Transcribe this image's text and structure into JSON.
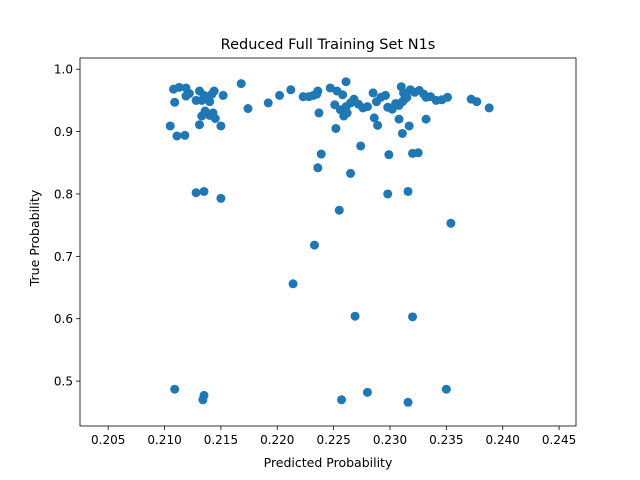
{
  "chart_data": {
    "type": "scatter",
    "title": "Reduced Full Training Set N1s",
    "xlabel": "Predicted Probability",
    "ylabel": "True Probability",
    "xlim": [
      0.2025,
      0.2465
    ],
    "ylim": [
      0.428,
      1.018
    ],
    "xticks": [
      0.205,
      0.21,
      0.215,
      0.22,
      0.225,
      0.23,
      0.235,
      0.24,
      0.245
    ],
    "xtick_labels": [
      "0.205",
      "0.210",
      "0.215",
      "0.220",
      "0.225",
      "0.230",
      "0.235",
      "0.240",
      "0.245"
    ],
    "yticks": [
      0.5,
      0.6,
      0.7,
      0.8,
      0.9,
      1.0
    ],
    "ytick_labels": [
      "0.5",
      "0.6",
      "0.7",
      "0.8",
      "0.9",
      "1.0"
    ],
    "grid": false,
    "marker_color": "#1f77b4",
    "series": [
      {
        "points": [
          [
            0.2108,
            0.968
          ],
          [
            0.2113,
            0.971
          ],
          [
            0.2119,
            0.97
          ],
          [
            0.2109,
            0.947
          ],
          [
            0.2105,
            0.909
          ],
          [
            0.2111,
            0.893
          ],
          [
            0.2118,
            0.894
          ],
          [
            0.2119,
            0.957
          ],
          [
            0.2122,
            0.961
          ],
          [
            0.2128,
            0.95
          ],
          [
            0.2131,
            0.965
          ],
          [
            0.2133,
            0.95
          ],
          [
            0.2135,
            0.958
          ],
          [
            0.2137,
            0.956
          ],
          [
            0.214,
            0.948
          ],
          [
            0.2142,
            0.96
          ],
          [
            0.2144,
            0.965
          ],
          [
            0.2133,
            0.925
          ],
          [
            0.2136,
            0.933
          ],
          [
            0.214,
            0.926
          ],
          [
            0.2143,
            0.93
          ],
          [
            0.2145,
            0.921
          ],
          [
            0.2131,
            0.911
          ],
          [
            0.215,
            0.909
          ],
          [
            0.2152,
            0.958
          ],
          [
            0.2128,
            0.802
          ],
          [
            0.2135,
            0.804
          ],
          [
            0.215,
            0.793
          ],
          [
            0.2109,
            0.487
          ],
          [
            0.2135,
            0.477
          ],
          [
            0.2134,
            0.47
          ],
          [
            0.2168,
            0.977
          ],
          [
            0.2174,
            0.937
          ],
          [
            0.2192,
            0.946
          ],
          [
            0.2202,
            0.958
          ],
          [
            0.2212,
            0.967
          ],
          [
            0.2223,
            0.956
          ],
          [
            0.2228,
            0.956
          ],
          [
            0.2232,
            0.958
          ],
          [
            0.2235,
            0.96
          ],
          [
            0.2236,
            0.965
          ],
          [
            0.2237,
            0.93
          ],
          [
            0.2247,
            0.97
          ],
          [
            0.2251,
            0.943
          ],
          [
            0.2253,
            0.965
          ],
          [
            0.2256,
            0.935
          ],
          [
            0.2258,
            0.959
          ],
          [
            0.2259,
            0.925
          ],
          [
            0.2261,
            0.98
          ],
          [
            0.2261,
            0.94
          ],
          [
            0.2262,
            0.93
          ],
          [
            0.2265,
            0.946
          ],
          [
            0.2268,
            0.952
          ],
          [
            0.2272,
            0.944
          ],
          [
            0.2276,
            0.938
          ],
          [
            0.228,
            0.94
          ],
          [
            0.2285,
            0.962
          ],
          [
            0.2286,
            0.922
          ],
          [
            0.2288,
            0.948
          ],
          [
            0.2289,
            0.91
          ],
          [
            0.2292,
            0.955
          ],
          [
            0.2296,
            0.958
          ],
          [
            0.2298,
            0.939
          ],
          [
            0.2302,
            0.936
          ],
          [
            0.2305,
            0.945
          ],
          [
            0.2308,
            0.942
          ],
          [
            0.231,
            0.972
          ],
          [
            0.2311,
            0.948
          ],
          [
            0.2312,
            0.962
          ],
          [
            0.2313,
            0.952
          ],
          [
            0.2315,
            0.955
          ],
          [
            0.2318,
            0.967
          ],
          [
            0.2322,
            0.963
          ],
          [
            0.2326,
            0.966
          ],
          [
            0.233,
            0.96
          ],
          [
            0.2332,
            0.955
          ],
          [
            0.2336,
            0.956
          ],
          [
            0.2341,
            0.95
          ],
          [
            0.2346,
            0.951
          ],
          [
            0.2351,
            0.955
          ],
          [
            0.2308,
            0.92
          ],
          [
            0.2311,
            0.897
          ],
          [
            0.2317,
            0.909
          ],
          [
            0.2332,
            0.92
          ],
          [
            0.2372,
            0.952
          ],
          [
            0.2377,
            0.948
          ],
          [
            0.2388,
            0.938
          ],
          [
            0.2252,
            0.905
          ],
          [
            0.2274,
            0.877
          ],
          [
            0.2239,
            0.864
          ],
          [
            0.2299,
            0.863
          ],
          [
            0.232,
            0.865
          ],
          [
            0.2325,
            0.866
          ],
          [
            0.2236,
            0.842
          ],
          [
            0.2265,
            0.833
          ],
          [
            0.2316,
            0.804
          ],
          [
            0.2298,
            0.8
          ],
          [
            0.2255,
            0.774
          ],
          [
            0.2354,
            0.753
          ],
          [
            0.2233,
            0.718
          ],
          [
            0.2214,
            0.656
          ],
          [
            0.2269,
            0.604
          ],
          [
            0.232,
            0.603
          ],
          [
            0.2257,
            0.47
          ],
          [
            0.228,
            0.482
          ],
          [
            0.2316,
            0.466
          ],
          [
            0.235,
            0.487
          ]
        ]
      }
    ]
  }
}
